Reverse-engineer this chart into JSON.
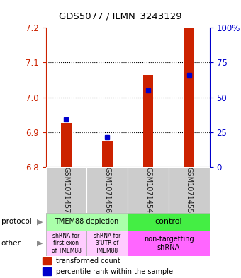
{
  "title": "GDS5077 / ILMN_3243129",
  "samples": [
    "GSM1071457",
    "GSM1071456",
    "GSM1071454",
    "GSM1071455"
  ],
  "red_values": [
    6.925,
    6.875,
    7.065,
    7.2
  ],
  "blue_values": [
    6.935,
    6.885,
    7.02,
    7.065
  ],
  "ymin": 6.8,
  "ymax": 7.2,
  "yticks_left": [
    6.8,
    6.9,
    7.0,
    7.1,
    7.2
  ],
  "yticks_right": [
    0,
    25,
    50,
    75,
    100
  ],
  "bar_base": 6.8,
  "bar_width": 0.25,
  "left_axis_color": "#cc2200",
  "right_axis_color": "#0000cc",
  "red_color": "#cc2200",
  "blue_color": "#0000cc",
  "protocol_color_left": "#aaffaa",
  "protocol_color_right": "#44ee44",
  "other_color_left": "#ffccff",
  "other_color_right": "#ff66ff"
}
